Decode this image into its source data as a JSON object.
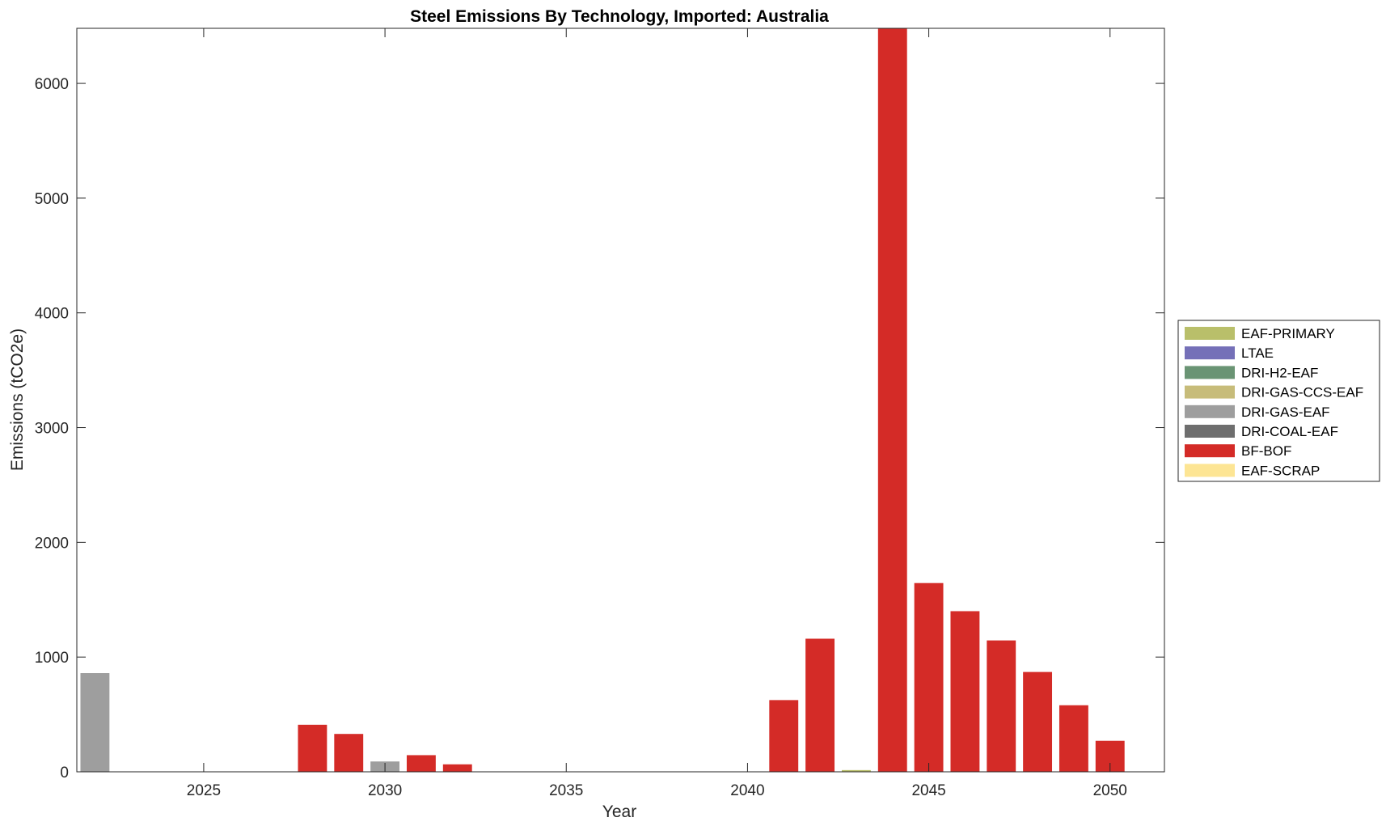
{
  "chart_data": {
    "type": "bar",
    "stacked": true,
    "title": "Steel Emissions By Technology, Imported: Australia",
    "xlabel": "Year",
    "ylabel": "Emissions (tCO2e)",
    "xlim": [
      2021.5,
      2051.5
    ],
    "ylim": [
      0,
      6480
    ],
    "xticks": [
      2025,
      2030,
      2035,
      2040,
      2045,
      2050
    ],
    "yticks": [
      0,
      1000,
      2000,
      3000,
      4000,
      5000,
      6000
    ],
    "grid": false,
    "legend_position": "right",
    "x": [
      2022,
      2023,
      2024,
      2025,
      2026,
      2027,
      2028,
      2029,
      2030,
      2031,
      2032,
      2033,
      2034,
      2035,
      2036,
      2037,
      2038,
      2039,
      2040,
      2041,
      2042,
      2043,
      2044,
      2045,
      2046,
      2047,
      2048,
      2049,
      2050
    ],
    "series": [
      {
        "name": "EAF-PRIMARY",
        "color": "#b9bf6a",
        "values": [
          0,
          0,
          0,
          0,
          0,
          0,
          0,
          0,
          0,
          0,
          0,
          0,
          0,
          0,
          0,
          0,
          0,
          0,
          0,
          0,
          0,
          15,
          0,
          0,
          0,
          0,
          0,
          0,
          0
        ]
      },
      {
        "name": "LTAE",
        "color": "#7570b8",
        "values": [
          0,
          0,
          0,
          0,
          0,
          0,
          0,
          0,
          0,
          0,
          0,
          0,
          0,
          0,
          0,
          0,
          0,
          0,
          0,
          0,
          0,
          0,
          0,
          0,
          0,
          0,
          0,
          0,
          0
        ]
      },
      {
        "name": "DRI-H2-EAF",
        "color": "#6a9474",
        "values": [
          0,
          0,
          0,
          0,
          0,
          0,
          0,
          0,
          0,
          0,
          0,
          0,
          0,
          0,
          0,
          0,
          0,
          0,
          0,
          0,
          0,
          0,
          0,
          0,
          0,
          0,
          0,
          0,
          0
        ]
      },
      {
        "name": "DRI-GAS-CCS-EAF",
        "color": "#c7bc7a",
        "values": [
          0,
          0,
          0,
          0,
          0,
          0,
          0,
          0,
          0,
          0,
          0,
          0,
          0,
          0,
          0,
          0,
          0,
          0,
          0,
          0,
          0,
          0,
          0,
          0,
          0,
          0,
          0,
          0,
          0
        ]
      },
      {
        "name": "DRI-GAS-EAF",
        "color": "#9e9e9e",
        "values": [
          860,
          0,
          0,
          0,
          0,
          0,
          0,
          0,
          90,
          0,
          0,
          0,
          0,
          0,
          0,
          0,
          0,
          0,
          0,
          0,
          0,
          0,
          0,
          0,
          0,
          0,
          0,
          0,
          0
        ]
      },
      {
        "name": "DRI-COAL-EAF",
        "color": "#6e6e6e",
        "values": [
          0,
          0,
          0,
          0,
          0,
          0,
          0,
          0,
          0,
          0,
          0,
          0,
          0,
          0,
          0,
          0,
          0,
          0,
          0,
          0,
          0,
          0,
          0,
          0,
          0,
          0,
          0,
          0,
          0
        ]
      },
      {
        "name": "BF-BOF",
        "color": "#d42b27",
        "values": [
          0,
          0,
          0,
          0,
          0,
          0,
          410,
          330,
          0,
          145,
          65,
          0,
          0,
          0,
          0,
          0,
          0,
          0,
          0,
          625,
          1160,
          0,
          6480,
          1645,
          1400,
          1145,
          870,
          580,
          270
        ]
      },
      {
        "name": "EAF-SCRAP",
        "color": "#fde594",
        "values": [
          0,
          0,
          0,
          0,
          0,
          0,
          0,
          0,
          0,
          0,
          0,
          0,
          0,
          0,
          0,
          0,
          0,
          0,
          0,
          0,
          0,
          0,
          0,
          0,
          0,
          0,
          0,
          0,
          0
        ]
      }
    ]
  }
}
